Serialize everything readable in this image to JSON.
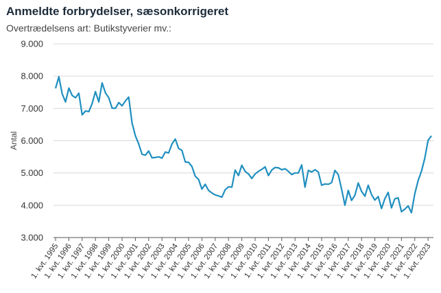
{
  "chart_data": {
    "type": "line",
    "title": "Anmeldte forbrydelser, sæsonkorrigeret",
    "subtitle": "Overtrædelsens art: Butikstyverier mv.:",
    "ylabel": "Antal",
    "xlabel": "",
    "ylim": [
      3000,
      9000
    ],
    "yticks": [
      "3.000",
      "4.000",
      "5.000",
      "6.000",
      "7.000",
      "8.000",
      "9.000"
    ],
    "ytick_values": [
      3000,
      4000,
      5000,
      6000,
      7000,
      8000,
      9000
    ],
    "xtick_labels": [
      "1. kvt. 1995",
      "1. kvt. 1996",
      "1. kvt. 1997",
      "1. kvt. 1998",
      "1. kvt. 1999",
      "1. kvt. 2000",
      "1. kvt. 2001",
      "1. kvt. 2002",
      "1. kvt. 2003",
      "1. kvt. 2004",
      "1. kvt. 2005",
      "1. kvt. 2006",
      "1. kvt. 2007",
      "1. kvt. 2008",
      "1. kvt. 2009",
      "1. kvt. 2010",
      "1. kvt. 2011",
      "1. kvt. 2012",
      "1. kvt. 2013",
      "1. kvt. 2014",
      "1. kvt. 2015",
      "1. kvt. 2016",
      "1. kvt. 2017",
      "1. kvt. 2018",
      "1. kvt. 2019",
      "1. kvt. 2020",
      "1. kvt. 2021",
      "1. kvt. 2022",
      "1. kvt. 2023"
    ],
    "grid": "horizontal",
    "line_color": "#1f8fbf",
    "series": [
      {
        "values": [
          7620,
          7980,
          7450,
          7200,
          7630,
          7400,
          7330,
          7470,
          6800,
          6920,
          6900,
          7150,
          7520,
          7200,
          7790,
          7480,
          7330,
          7010,
          7000,
          7180,
          7080,
          7230,
          7350,
          6550,
          6150,
          5900,
          5580,
          5550,
          5680,
          5470,
          5480,
          5500,
          5460,
          5650,
          5620,
          5900,
          6050,
          5760,
          5700,
          5340,
          5330,
          5200,
          4900,
          4800,
          4500,
          4650,
          4460,
          4380,
          4320,
          4290,
          4250,
          4480,
          4570,
          4560,
          5090,
          4920,
          5240,
          5050,
          4970,
          4830,
          4970,
          5050,
          5110,
          5190,
          4920,
          5090,
          5170,
          5160,
          5100,
          5130,
          5050,
          4950,
          5000,
          5000,
          5250,
          4560,
          5080,
          5030,
          5100,
          5030,
          4620,
          4660,
          4650,
          4700,
          5080,
          4950,
          4500,
          4000,
          4460,
          4150,
          4310,
          4690,
          4430,
          4280,
          4620,
          4330,
          4160,
          4270,
          3900,
          4200,
          4400,
          3920,
          4200,
          4230,
          3800,
          3880,
          3980,
          3770,
          4350,
          4760,
          5050,
          5450,
          6010,
          6150
        ]
      }
    ]
  }
}
